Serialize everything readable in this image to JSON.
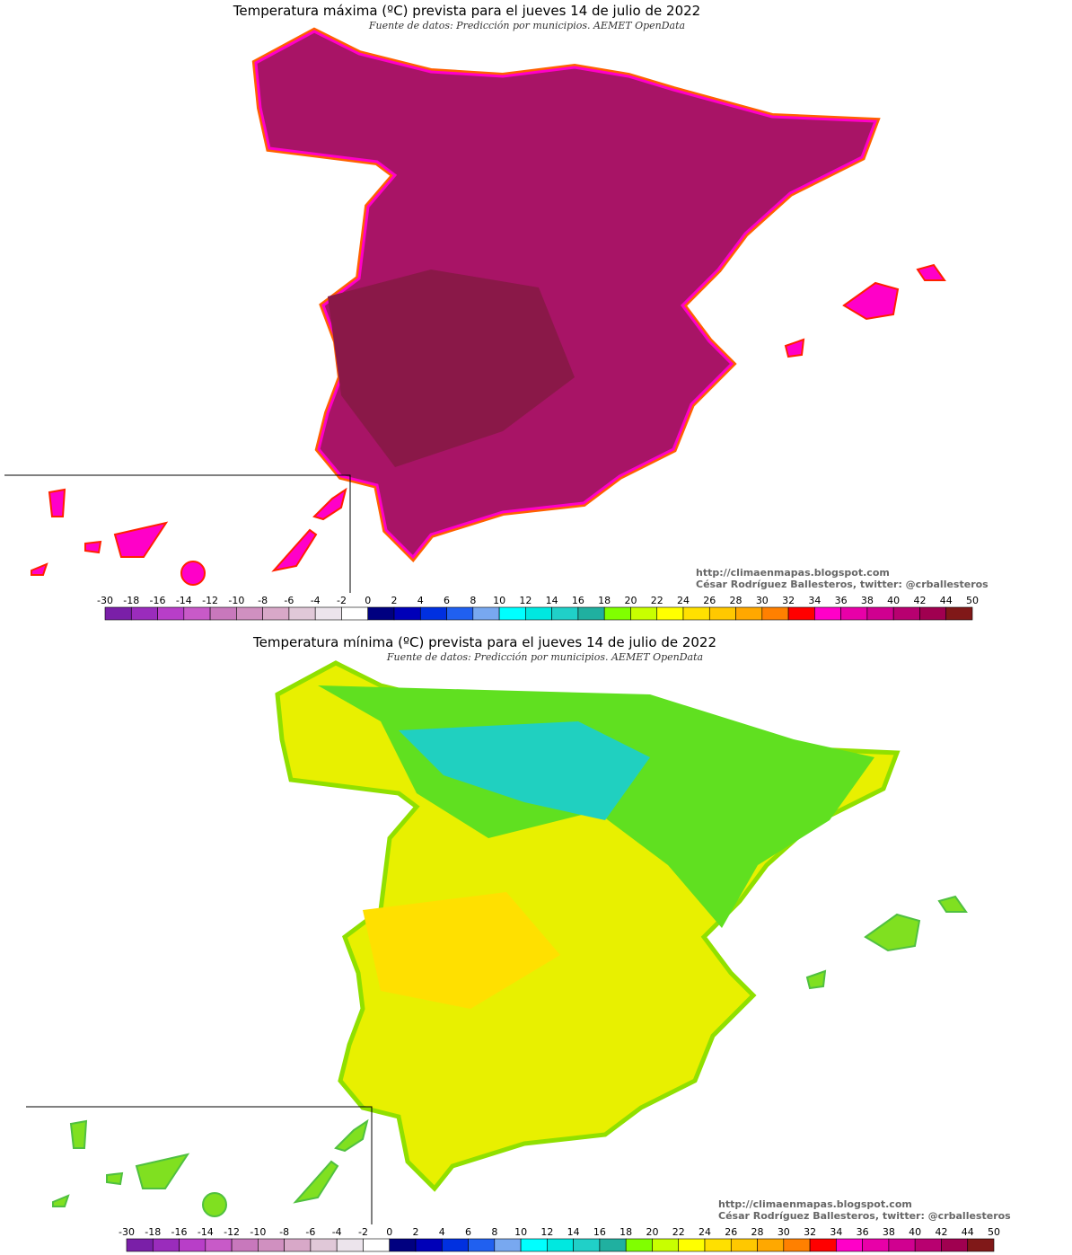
{
  "panels": [
    {
      "title": "Temperatura máxima (ºC) prevista para el jueves 14 de julio de 2022",
      "subtitle": "Fuente de datos: Predicción por municipios. AEMET OpenData",
      "credits": [
        "http://climaenmapas.blogspot.com",
        "César Rodríguez Ballesteros, twitter: @crballesteros"
      ]
    },
    {
      "title": "Temperatura mínima (ºC) prevista para el jueves 14 de julio de 2022",
      "subtitle": "Fuente de datos: Predicción por municipios. AEMET OpenData",
      "credits": [
        "http://climaenmapas.blogspot.com",
        "César Rodríguez Ballesteros, twitter: @crballesteros"
      ]
    }
  ],
  "scale": {
    "labels": [
      -30,
      -18,
      -16,
      -14,
      -12,
      -10,
      -8,
      -6,
      -4,
      -2,
      0,
      2,
      4,
      6,
      8,
      10,
      12,
      14,
      16,
      18,
      20,
      22,
      24,
      26,
      28,
      30,
      32,
      34,
      36,
      38,
      40,
      42,
      44,
      50
    ],
    "colors": [
      "#7a1fa8",
      "#9a2cbc",
      "#b83ec8",
      "#c85ac8",
      "#c878bc",
      "#d090c0",
      "#d8a8c8",
      "#e0c8d8",
      "#ece4ec",
      "#ffffff",
      "#000080",
      "#0000b8",
      "#0030e0",
      "#2060f0",
      "#78a8f0",
      "#00ffff",
      "#00e8e0",
      "#20d0c8",
      "#20b0a0",
      "#80ff00",
      "#c8ff00",
      "#ffff00",
      "#ffe000",
      "#ffc800",
      "#ffa800",
      "#ff8000",
      "#ff0000",
      "#ff00c8",
      "#e800a8",
      "#d00090",
      "#b80070",
      "#a00050",
      "#801818"
    ]
  }
}
